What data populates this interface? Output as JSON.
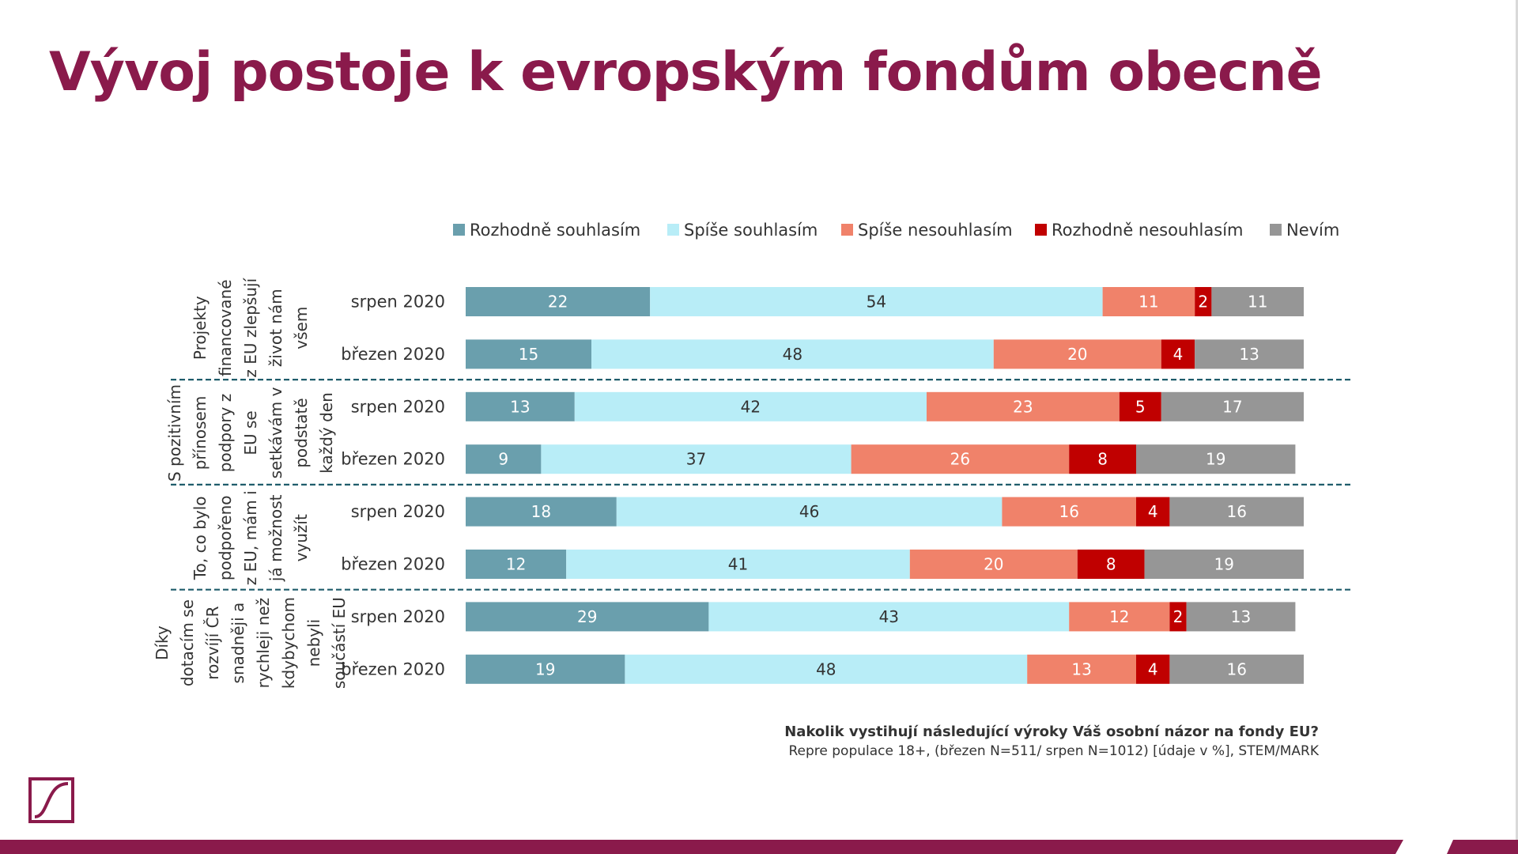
{
  "title": "Vývoj postoje k evropským fondům obecně",
  "question": "Nakolik vystihují následující výroky Váš osobní názor na fondy EU?",
  "source": "Repre populace 18+, (březen N=511/ srpen N=1012) [údaje v %], STEM/MARK",
  "colors": {
    "title": "#8a1a4b",
    "accent_bar": "#8a1a4b",
    "divider": "#1f5c6b"
  },
  "chart_data": {
    "type": "bar",
    "orientation": "horizontal",
    "stacked": true,
    "percent": true,
    "legend_position": "top",
    "legend": [
      {
        "name": "Rozhodně souhlasím",
        "color": "#6a9fad"
      },
      {
        "name": "Spíše souhlasím",
        "color": "#b8edf7"
      },
      {
        "name": "Spíše nesouhlasím",
        "color": "#f0826a"
      },
      {
        "name": "Rozhodně nesouhlasím",
        "color": "#c00000"
      },
      {
        "name": "Nevím",
        "color": "#969696"
      }
    ],
    "groups": [
      {
        "label_lines": [
          "Projekty",
          "financované",
          "z EU zlepšují",
          "život nám",
          "všem"
        ],
        "rows": [
          {
            "label": "srpen 2020",
            "values": [
              22,
              54,
              11,
              2,
              11
            ]
          },
          {
            "label": "březen 2020",
            "values": [
              15,
              48,
              20,
              4,
              13
            ]
          }
        ]
      },
      {
        "label_lines": [
          "S pozitivním",
          "přínosem",
          "podpory z",
          "EU se",
          "setkávám v",
          "podstatě",
          "každý den"
        ],
        "rows": [
          {
            "label": "srpen 2020",
            "values": [
              13,
              42,
              23,
              5,
              17
            ]
          },
          {
            "label": "březen 2020",
            "values": [
              9,
              37,
              26,
              8,
              19
            ]
          }
        ]
      },
      {
        "label_lines": [
          "To, co bylo",
          "podpořeno",
          "z EU, mám i",
          "já možnost",
          "využít"
        ],
        "rows": [
          {
            "label": "srpen 2020",
            "values": [
              18,
              46,
              16,
              4,
              16
            ]
          },
          {
            "label": "březen 2020",
            "values": [
              12,
              41,
              20,
              8,
              19
            ]
          }
        ]
      },
      {
        "label_lines": [
          "Díky",
          "dotacím se",
          "rozvíjí ČR",
          "snadněji a",
          "rychleji než",
          "kdybychom",
          "nebyli",
          "součástí EU"
        ],
        "rows": [
          {
            "label": "srpen 2020",
            "values": [
              29,
              43,
              12,
              2,
              13
            ]
          },
          {
            "label": "březen 2020",
            "values": [
              19,
              48,
              13,
              4,
              16
            ]
          }
        ]
      }
    ]
  }
}
